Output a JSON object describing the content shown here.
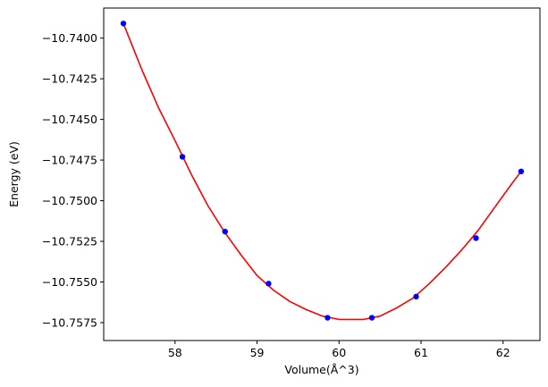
{
  "chart_data": {
    "type": "scatter",
    "xlabel": "Volume(Å^3)",
    "ylabel": "Energy (eV)",
    "xlim": [
      57.13,
      62.45
    ],
    "ylim": [
      -10.7586,
      -10.73815
    ],
    "grid": false,
    "legend": "none",
    "xticks": [
      58,
      59,
      60,
      61,
      62
    ],
    "xtick_labels": [
      "58",
      "59",
      "60",
      "61",
      "62"
    ],
    "yticks": [
      -10.74,
      -10.7425,
      -10.745,
      -10.7475,
      -10.75,
      -10.7525,
      -10.755,
      -10.7575
    ],
    "ytick_labels": [
      "−10.7400",
      "−10.7425",
      "−10.7450",
      "−10.7475",
      "−10.7500",
      "−10.7525",
      "−10.7550",
      "−10.7575"
    ],
    "series": [
      {
        "kind": "scatter",
        "color": "#0000ff",
        "x": [
          57.37,
          58.09,
          58.61,
          59.14,
          59.86,
          60.4,
          60.94,
          61.67,
          62.22
        ],
        "y": [
          -10.7391,
          -10.7473,
          -10.7519,
          -10.7551,
          -10.7572,
          -10.7572,
          -10.7559,
          -10.7523,
          -10.7482
        ]
      },
      {
        "kind": "line",
        "color": "#ff0000",
        "x": [
          57.37,
          57.6,
          57.8,
          58.0,
          58.2,
          58.4,
          58.6,
          58.8,
          59.0,
          59.2,
          59.4,
          59.6,
          59.8,
          60.0,
          60.15,
          60.3,
          60.5,
          60.7,
          60.9,
          61.1,
          61.3,
          61.5,
          61.7,
          61.9,
          62.1,
          62.22
        ],
        "y": [
          -10.7391,
          -10.742,
          -10.7443,
          -10.7463,
          -10.7484,
          -10.7503,
          -10.7519,
          -10.7533,
          -10.7546,
          -10.7555,
          -10.7562,
          -10.7567,
          -10.7571,
          -10.7573,
          -10.7573,
          -10.7573,
          -10.7571,
          -10.7566,
          -10.756,
          -10.7551,
          -10.7541,
          -10.753,
          -10.7518,
          -10.7504,
          -10.749,
          -10.7482
        ]
      }
    ]
  }
}
